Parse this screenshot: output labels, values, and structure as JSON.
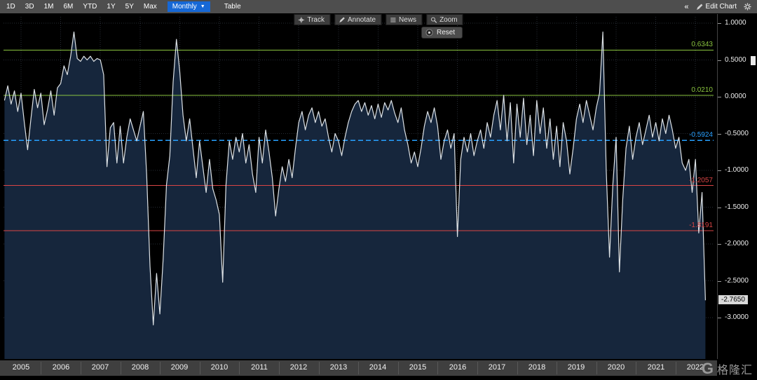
{
  "toolbar": {
    "periods": [
      "1D",
      "3D",
      "1M",
      "6M",
      "YTD",
      "1Y",
      "5Y",
      "Max"
    ],
    "frequency_label": "Monthly",
    "frequency_caret": "▼",
    "table_label": "Table",
    "collapse_icon": "«",
    "edit_chart_label": "Edit Chart"
  },
  "chart_toolbar": {
    "buttons": [
      {
        "icon": "crosshair-icon",
        "label": "Track"
      },
      {
        "icon": "pencil-icon",
        "label": "Annotate"
      },
      {
        "icon": "news-icon",
        "label": "News"
      },
      {
        "icon": "magnifier-icon",
        "label": "Zoom"
      }
    ],
    "reset_label": "Reset"
  },
  "chart_data": {
    "type": "line",
    "title": "",
    "xlabel": "",
    "ylabel": "",
    "x_start": 2004.5833,
    "x_step_months": 1,
    "x_tick_labels": [
      "2005",
      "2006",
      "2007",
      "2008",
      "2009",
      "2010",
      "2011",
      "2012",
      "2013",
      "2014",
      "2015",
      "2016",
      "2017",
      "2018",
      "2019",
      "2020",
      "2021",
      "2022"
    ],
    "ylim": [
      -3.25,
      1.05
    ],
    "y_ticks": [
      1.0,
      0.5,
      0.0,
      -0.5,
      -1.0,
      -1.5,
      -2.0,
      -2.5,
      -3.0
    ],
    "y_tick_labels": [
      "1.0000",
      "0.5000",
      "0.0000",
      "-0.5000",
      "-1.0000",
      "-1.5000",
      "-2.0000",
      "-2.5000",
      "-3.0000"
    ],
    "grid": true,
    "line_color": "#dde2e6",
    "fill_color": "#16263c",
    "last_value_label": "-2.7650",
    "reference_lines": [
      {
        "value": 0.6343,
        "label": "0.6343",
        "color": "#8ac43f",
        "style": "solid"
      },
      {
        "value": 0.021,
        "label": "0.0210",
        "color": "#8ac43f",
        "style": "solid"
      },
      {
        "value": -0.5924,
        "label": "-0.5924",
        "color": "#27a0ff",
        "style": "dashed"
      },
      {
        "value": -1.2057,
        "label": "-1.2057",
        "color": "#d94545",
        "style": "solid"
      },
      {
        "value": -1.8191,
        "label": "-1.8191",
        "color": "#d94545",
        "style": "solid"
      }
    ],
    "values": [
      -0.05,
      0.15,
      -0.1,
      0.08,
      -0.2,
      0.05,
      -0.35,
      -0.72,
      -0.3,
      0.1,
      -0.15,
      0.05,
      -0.38,
      -0.18,
      0.08,
      -0.25,
      0.12,
      0.18,
      0.42,
      0.3,
      0.55,
      0.88,
      0.52,
      0.48,
      0.55,
      0.5,
      0.55,
      0.48,
      0.52,
      0.5,
      0.3,
      -0.95,
      -0.42,
      -0.35,
      -0.9,
      -0.4,
      -0.9,
      -0.55,
      -0.3,
      -0.45,
      -0.6,
      -0.4,
      -0.2,
      -1.05,
      -2.3,
      -3.1,
      -2.4,
      -2.95,
      -2.2,
      -1.2,
      -0.8,
      0.2,
      0.78,
      0.35,
      -0.25,
      -0.6,
      -0.3,
      -0.7,
      -1.1,
      -0.6,
      -0.95,
      -1.3,
      -0.85,
      -1.25,
      -1.4,
      -1.6,
      -2.52,
      -1.2,
      -0.6,
      -0.85,
      -0.55,
      -0.75,
      -0.5,
      -0.9,
      -0.65,
      -1.05,
      -1.3,
      -0.55,
      -0.9,
      -0.45,
      -0.75,
      -1.1,
      -1.62,
      -1.25,
      -0.95,
      -1.15,
      -0.85,
      -1.1,
      -0.7,
      -0.35,
      -0.2,
      -0.45,
      -0.25,
      -0.15,
      -0.35,
      -0.2,
      -0.4,
      -0.3,
      -0.55,
      -0.75,
      -0.5,
      -0.6,
      -0.8,
      -0.55,
      -0.35,
      -0.2,
      -0.1,
      -0.05,
      -0.2,
      -0.08,
      -0.25,
      -0.12,
      -0.3,
      -0.1,
      -0.28,
      -0.08,
      -0.18,
      -0.05,
      -0.22,
      -0.35,
      -0.15,
      -0.45,
      -0.65,
      -0.9,
      -0.75,
      -0.95,
      -0.7,
      -0.4,
      -0.2,
      -0.35,
      -0.15,
      -0.4,
      -0.85,
      -0.6,
      -0.45,
      -0.7,
      -0.5,
      -1.9,
      -0.85,
      -0.55,
      -0.75,
      -0.5,
      -0.8,
      -0.6,
      -0.45,
      -0.7,
      -0.35,
      -0.55,
      -0.25,
      -0.05,
      -0.45,
      0.02,
      -0.6,
      -0.08,
      -0.9,
      -0.1,
      -0.55,
      -0.02,
      -0.65,
      -0.25,
      -0.8,
      -0.05,
      -0.5,
      -0.15,
      -0.7,
      -0.3,
      -0.85,
      -0.4,
      -0.95,
      -0.35,
      -0.6,
      -1.05,
      -0.7,
      -0.3,
      -0.1,
      -0.35,
      -0.05,
      -0.25,
      -0.45,
      -0.15,
      0.05,
      0.88,
      -1.0,
      -2.18,
      -1.2,
      -0.55,
      -2.38,
      -1.4,
      -0.7,
      -0.4,
      -0.85,
      -0.55,
      -0.35,
      -0.65,
      -0.45,
      -0.25,
      -0.55,
      -0.35,
      -0.6,
      -0.3,
      -0.5,
      -0.25,
      -0.45,
      -0.7,
      -0.55,
      -0.9,
      -1.0,
      -0.85,
      -1.3,
      -0.85,
      -1.85,
      -1.3,
      -2.765
    ],
    "legend": []
  },
  "watermark": {
    "logo": "G",
    "text": "格隆汇"
  }
}
